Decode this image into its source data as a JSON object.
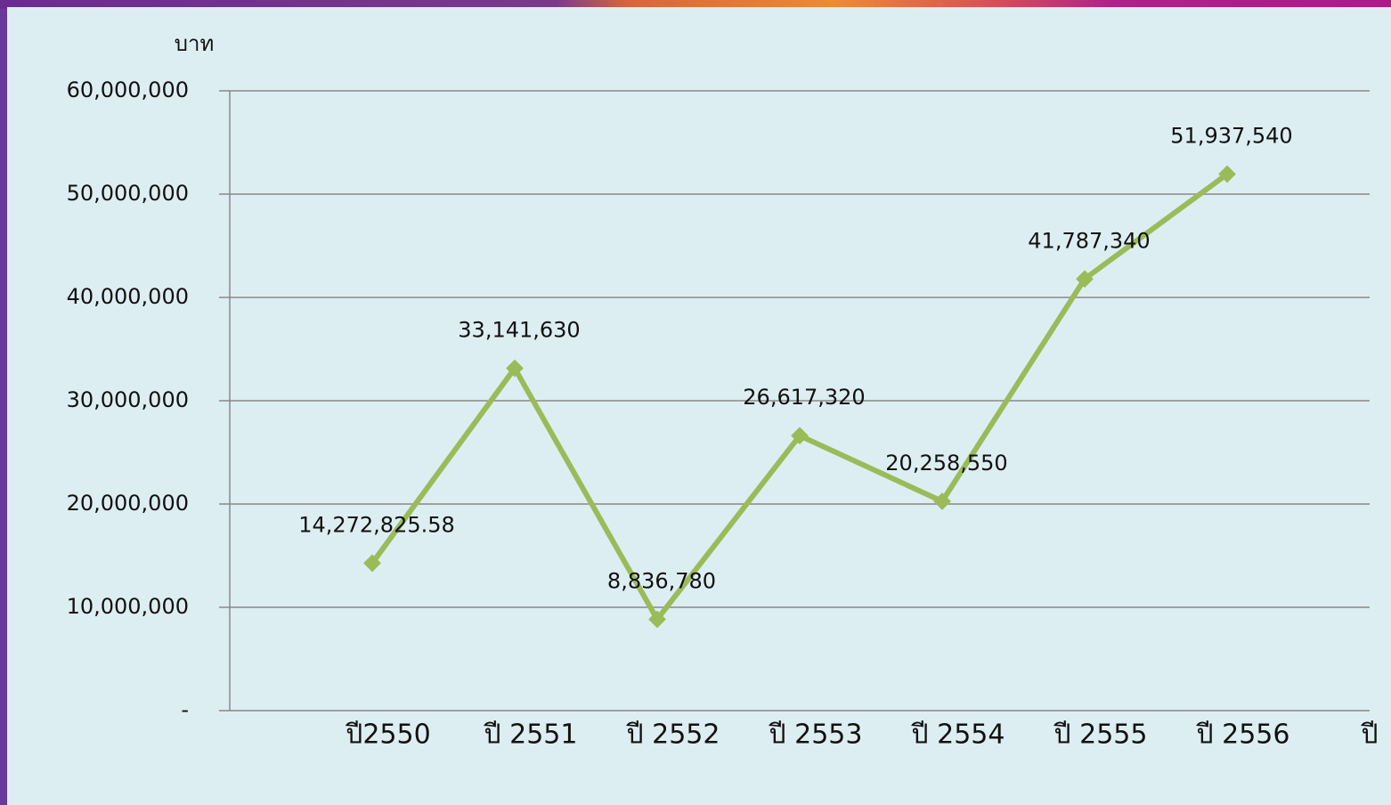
{
  "chart_data": {
    "type": "line",
    "y_label": "บาท",
    "x_label": "ปี",
    "categories": [
      "ปี2550",
      "ปี 2551",
      "ปี 2552",
      "ปี 2553",
      "ปี 2554",
      "ปี 2555",
      "ปี 2556"
    ],
    "series": [
      {
        "color": "#9bbb59",
        "values": [
          14272825.58,
          33141630,
          8836780,
          26617320,
          20258550,
          41787340,
          51937540
        ],
        "value_labels": [
          "14,272,825.58",
          "33,141,630",
          "8,836,780",
          "26,617,320",
          "20,258,550",
          "41,787,340",
          "51,937,540"
        ]
      }
    ],
    "ylim": [
      0,
      60000000
    ],
    "yticks": [
      {
        "value": 0,
        "label": "-"
      },
      {
        "value": 10000000,
        "label": "10,000,000"
      },
      {
        "value": 20000000,
        "label": "20,000,000"
      },
      {
        "value": 30000000,
        "label": "30,000,000"
      },
      {
        "value": 40000000,
        "label": "40,000,000"
      },
      {
        "value": 50000000,
        "label": "50,000,000"
      },
      {
        "value": 60000000,
        "label": "60,000,000"
      }
    ],
    "grid": true
  }
}
